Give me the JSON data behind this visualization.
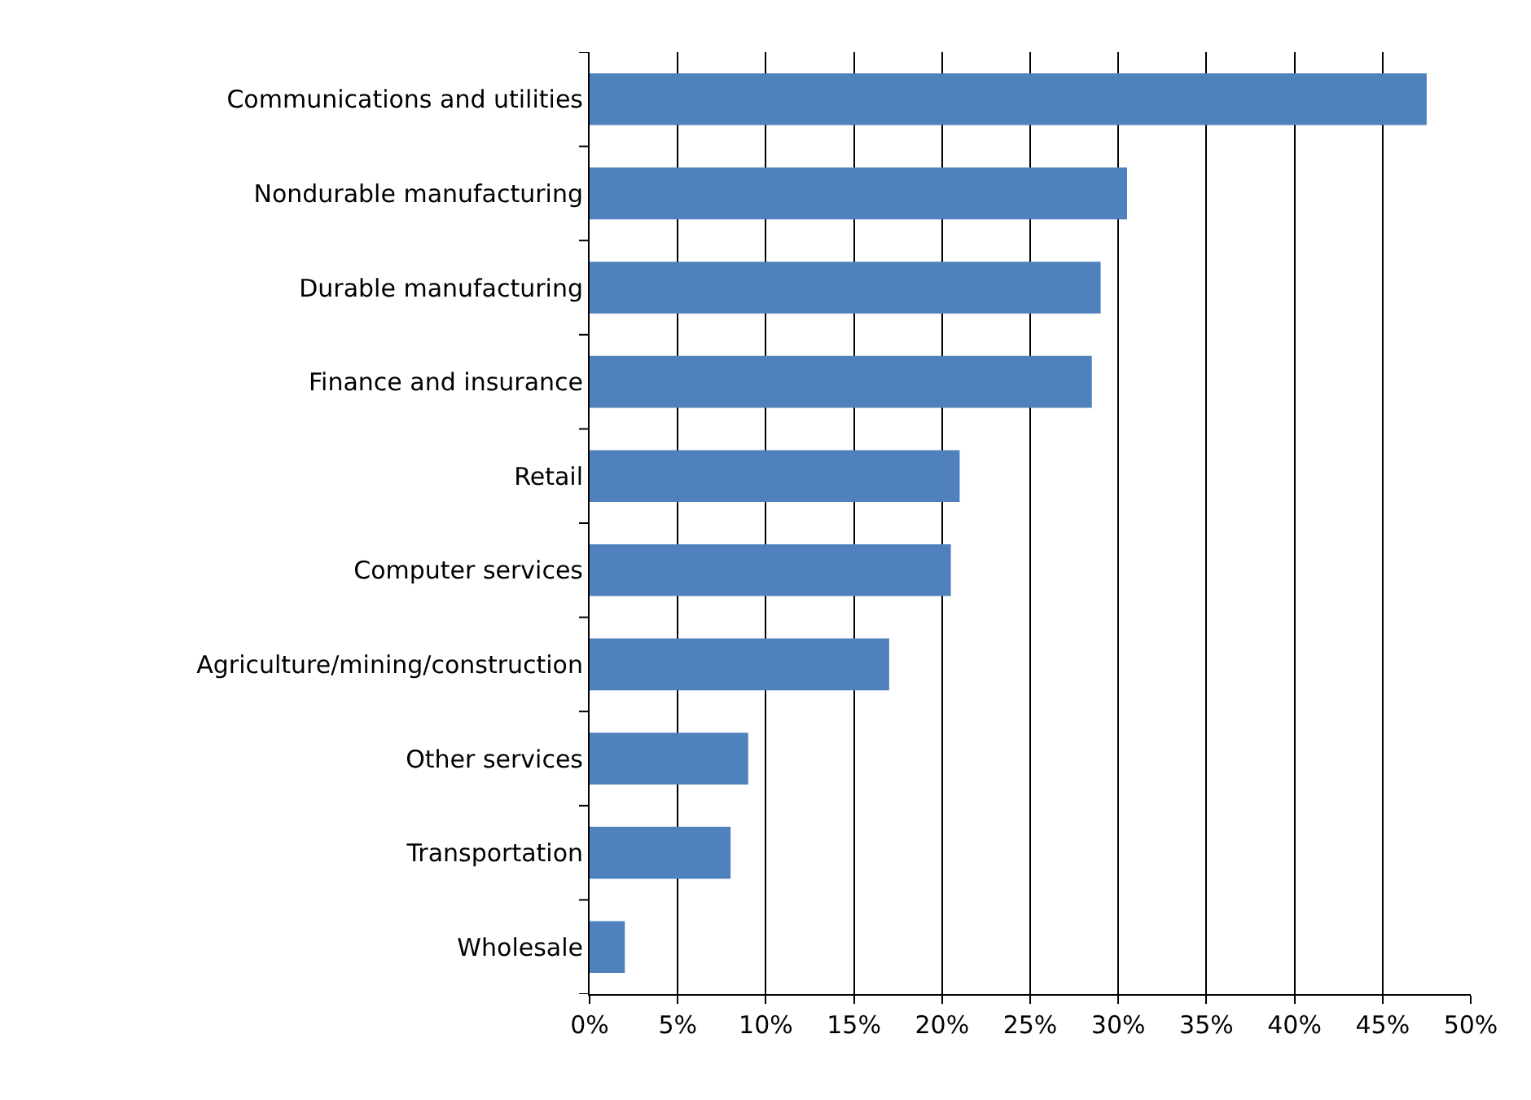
{
  "chart_data": {
    "type": "bar",
    "orientation": "horizontal",
    "categories": [
      "Communications and utilities",
      "Nondurable manufacturing",
      "Durable manufacturing",
      "Finance and insurance",
      "Retail",
      "Computer services",
      "Agriculture/mining/construction",
      "Other services",
      "Transportation",
      "Wholesale"
    ],
    "values": [
      47.5,
      30.5,
      29,
      28.5,
      21,
      20.5,
      17,
      9,
      8,
      2
    ],
    "color": "#4f81bd",
    "xlim": [
      0,
      50
    ],
    "xticks": [
      {
        "value": 0,
        "label": "0%"
      },
      {
        "value": 5,
        "label": "5%"
      },
      {
        "value": 10,
        "label": "10%"
      },
      {
        "value": 15,
        "label": "15%"
      },
      {
        "value": 20,
        "label": "20%"
      },
      {
        "value": 25,
        "label": "25%"
      },
      {
        "value": 30,
        "label": "30%"
      },
      {
        "value": 35,
        "label": "35%"
      },
      {
        "value": 40,
        "label": "40%"
      },
      {
        "value": 45,
        "label": "45%"
      },
      {
        "value": 50,
        "label": "50%"
      }
    ],
    "grid": "x"
  }
}
